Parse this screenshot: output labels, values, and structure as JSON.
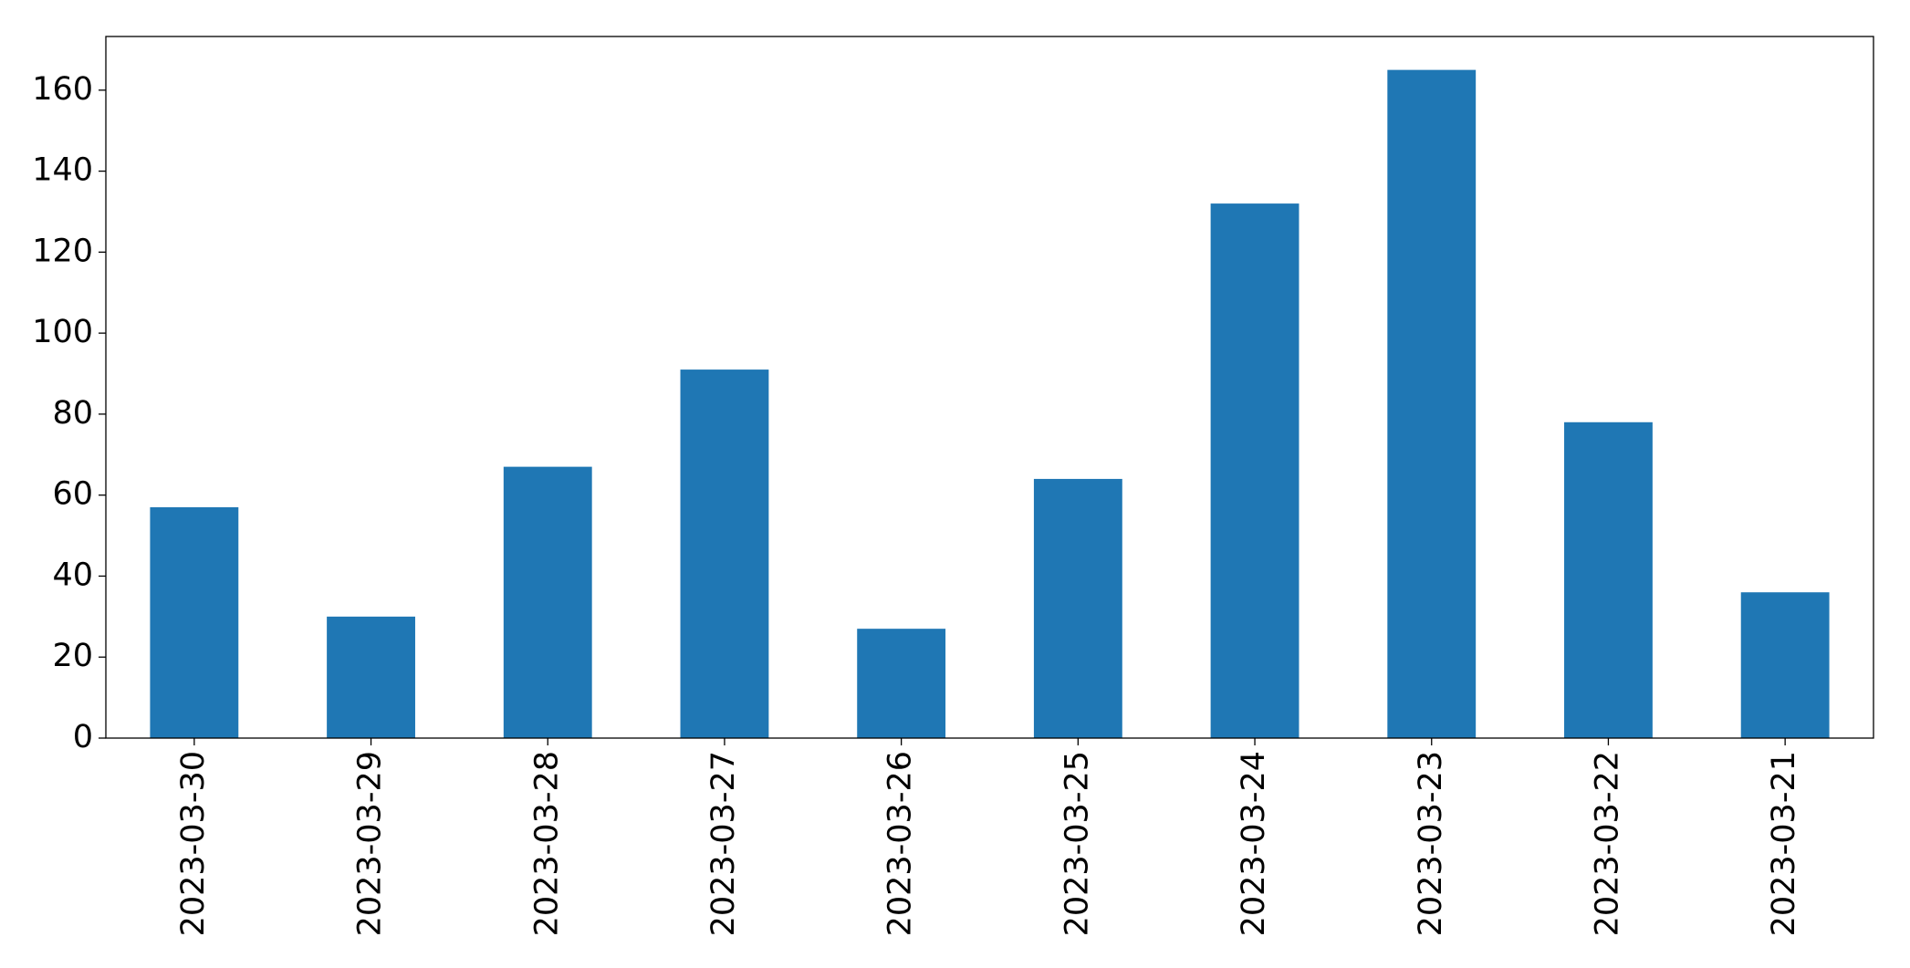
{
  "chart_data": {
    "type": "bar",
    "categories": [
      "2023-03-30",
      "2023-03-29",
      "2023-03-28",
      "2023-03-27",
      "2023-03-26",
      "2023-03-25",
      "2023-03-24",
      "2023-03-23",
      "2023-03-22",
      "2023-03-21"
    ],
    "values": [
      57,
      30,
      67,
      91,
      27,
      64,
      132,
      165,
      78,
      36
    ],
    "color": "#1f77b4",
    "ylim": [
      0,
      173.25
    ],
    "yticks": [
      0,
      20,
      40,
      60,
      80,
      100,
      120,
      140,
      160
    ],
    "grid": false
  }
}
